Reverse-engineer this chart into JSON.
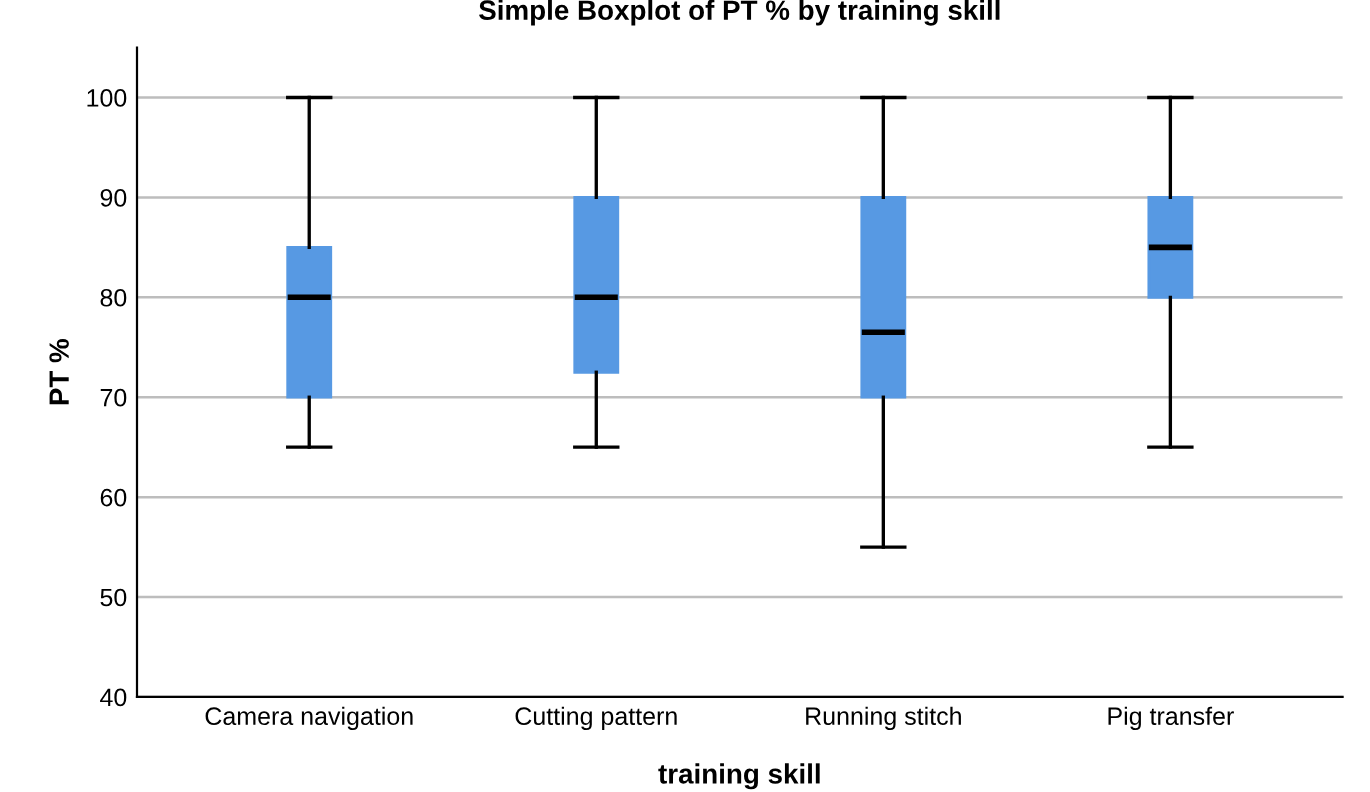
{
  "chart_data": {
    "type": "box",
    "title": "Simple Boxplot of PT % by training skill",
    "xlabel": "training skill",
    "ylabel": "PT %",
    "categories": [
      "Camera navigation",
      "Cutting pattern",
      "Running stitch",
      "Pig transfer"
    ],
    "color": "#5799e3",
    "boxes": [
      {
        "low": 65,
        "q1": 70,
        "median": 80,
        "q3": 85,
        "high": 100
      },
      {
        "low": 65,
        "q1": 72.5,
        "median": 80,
        "q3": 90,
        "high": 100
      },
      {
        "low": 55,
        "q1": 70,
        "median": 76.5,
        "q3": 90,
        "high": 100
      },
      {
        "low": 65,
        "q1": 80,
        "median": 85,
        "q3": 90,
        "high": 100
      }
    ],
    "ylim": [
      40,
      105
    ],
    "yticks": [
      40,
      50,
      60,
      70,
      80,
      90,
      100
    ],
    "grid": "y",
    "legend": false
  }
}
